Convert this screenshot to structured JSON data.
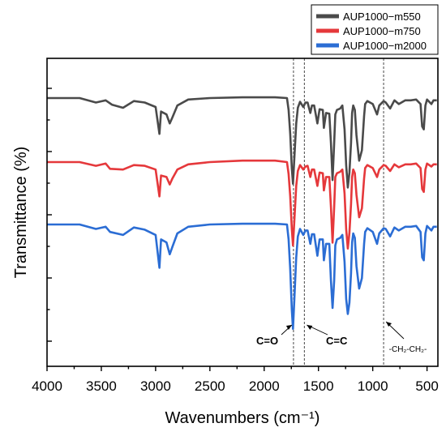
{
  "chart_data": {
    "type": "line",
    "xlabel": "Wavenumbers (cm⁻¹)",
    "ylabel": "Transmittance (%)",
    "xlim": [
      4000,
      400
    ],
    "x_reversed": true,
    "x_ticks": [
      4000,
      3500,
      3000,
      2500,
      2000,
      1500,
      1000,
      500
    ],
    "y_ticks_labeled": false,
    "legend_position": "top-right",
    "series": [
      {
        "name": "AUP1000−m550",
        "color": "#4a4a4a",
        "points": [
          [
            4000,
            0
          ],
          [
            3700,
            0
          ],
          [
            3550,
            -0.6
          ],
          [
            3460,
            -0.3
          ],
          [
            3400,
            -0.9
          ],
          [
            3300,
            -1.3
          ],
          [
            3200,
            -0.4
          ],
          [
            3100,
            -0.6
          ],
          [
            3000,
            -1.2
          ],
          [
            2965,
            -4.8
          ],
          [
            2950,
            -1.8
          ],
          [
            2900,
            -2.2
          ],
          [
            2870,
            -3.4
          ],
          [
            2845,
            -2.6
          ],
          [
            2800,
            -1.0
          ],
          [
            2700,
            -0.2
          ],
          [
            2500,
            0
          ],
          [
            2200,
            0.1
          ],
          [
            1900,
            0.1
          ],
          [
            1790,
            0
          ],
          [
            1775,
            -1.6
          ],
          [
            1760,
            -4.8
          ],
          [
            1745,
            -9.5
          ],
          [
            1735,
            -11.5
          ],
          [
            1722,
            -8.0
          ],
          [
            1705,
            -3.4
          ],
          [
            1690,
            -1.3
          ],
          [
            1670,
            -0.5
          ],
          [
            1640,
            -1.2
          ],
          [
            1620,
            -0.6
          ],
          [
            1600,
            -0.6
          ],
          [
            1575,
            -2.0
          ],
          [
            1560,
            -1.0
          ],
          [
            1540,
            -1.0
          ],
          [
            1510,
            -3.4
          ],
          [
            1490,
            -1.5
          ],
          [
            1460,
            -1.6
          ],
          [
            1450,
            -4.0
          ],
          [
            1430,
            -2.0
          ],
          [
            1400,
            -2.1
          ],
          [
            1385,
            -6.0
          ],
          [
            1370,
            -11.0
          ],
          [
            1355,
            -6.0
          ],
          [
            1345,
            -2.2
          ],
          [
            1330,
            -1.6
          ],
          [
            1300,
            -1.4
          ],
          [
            1280,
            -1.0
          ],
          [
            1260,
            -4.2
          ],
          [
            1245,
            -9.0
          ],
          [
            1230,
            -12.0
          ],
          [
            1215,
            -10.0
          ],
          [
            1200,
            -6.0
          ],
          [
            1190,
            -2.0
          ],
          [
            1180,
            -1.0
          ],
          [
            1165,
            -1.6
          ],
          [
            1150,
            -5.0
          ],
          [
            1125,
            -8.4
          ],
          [
            1100,
            -7.0
          ],
          [
            1080,
            -2.4
          ],
          [
            1070,
            -0.8
          ],
          [
            1050,
            -0.4
          ],
          [
            1000,
            -0.8
          ],
          [
            960,
            -2.2
          ],
          [
            940,
            -1.0
          ],
          [
            900,
            -0.4
          ],
          [
            880,
            -0.6
          ],
          [
            840,
            -1.4
          ],
          [
            800,
            -0.3
          ],
          [
            760,
            -0.8
          ],
          [
            700,
            -0.3
          ],
          [
            650,
            -0.3
          ],
          [
            600,
            -0.2
          ],
          [
            560,
            -0.8
          ],
          [
            545,
            -3.8
          ],
          [
            530,
            -4.2
          ],
          [
            515,
            -1.0
          ],
          [
            500,
            -0.2
          ],
          [
            460,
            -0.8
          ],
          [
            440,
            -0.3
          ],
          [
            410,
            -0.3
          ]
        ]
      },
      {
        "name": "AUP1000−m750",
        "color": "#e5383b",
        "points": [
          [
            4000,
            0
          ],
          [
            3700,
            0
          ],
          [
            3550,
            -0.5
          ],
          [
            3460,
            -0.2
          ],
          [
            3420,
            -0.9
          ],
          [
            3300,
            -1.0
          ],
          [
            3200,
            -0.4
          ],
          [
            3100,
            -0.5
          ],
          [
            3000,
            -1.0
          ],
          [
            2965,
            -4.6
          ],
          [
            2950,
            -1.8
          ],
          [
            2900,
            -2.0
          ],
          [
            2870,
            -3.0
          ],
          [
            2845,
            -2.2
          ],
          [
            2800,
            -1.0
          ],
          [
            2700,
            -0.3
          ],
          [
            2500,
            0
          ],
          [
            2200,
            0.2
          ],
          [
            1900,
            0.2
          ],
          [
            1790,
            0
          ],
          [
            1775,
            -1.6
          ],
          [
            1760,
            -4.6
          ],
          [
            1745,
            -9.0
          ],
          [
            1735,
            -11.2
          ],
          [
            1722,
            -7.8
          ],
          [
            1705,
            -3.2
          ],
          [
            1690,
            -1.2
          ],
          [
            1670,
            -0.4
          ],
          [
            1640,
            -1.0
          ],
          [
            1620,
            -0.6
          ],
          [
            1600,
            -0.5
          ],
          [
            1575,
            -2.0
          ],
          [
            1560,
            -1.0
          ],
          [
            1540,
            -1.0
          ],
          [
            1510,
            -3.2
          ],
          [
            1490,
            -1.4
          ],
          [
            1460,
            -1.5
          ],
          [
            1450,
            -3.8
          ],
          [
            1430,
            -2.0
          ],
          [
            1400,
            -2.0
          ],
          [
            1385,
            -6.0
          ],
          [
            1370,
            -10.8
          ],
          [
            1355,
            -6.0
          ],
          [
            1345,
            -2.0
          ],
          [
            1330,
            -1.5
          ],
          [
            1300,
            -1.3
          ],
          [
            1280,
            -1.0
          ],
          [
            1260,
            -4.2
          ],
          [
            1245,
            -9.0
          ],
          [
            1230,
            -11.6
          ],
          [
            1215,
            -9.5
          ],
          [
            1200,
            -5.6
          ],
          [
            1190,
            -2.0
          ],
          [
            1180,
            -1.0
          ],
          [
            1165,
            -1.5
          ],
          [
            1150,
            -4.4
          ],
          [
            1125,
            -7.4
          ],
          [
            1100,
            -6.2
          ],
          [
            1080,
            -2.2
          ],
          [
            1070,
            -0.8
          ],
          [
            1050,
            -0.4
          ],
          [
            1000,
            -0.8
          ],
          [
            960,
            -2.0
          ],
          [
            940,
            -1.0
          ],
          [
            900,
            -0.4
          ],
          [
            880,
            -0.5
          ],
          [
            840,
            -1.2
          ],
          [
            800,
            -0.3
          ],
          [
            760,
            -0.7
          ],
          [
            700,
            -0.3
          ],
          [
            650,
            -0.3
          ],
          [
            600,
            -0.2
          ],
          [
            560,
            -0.8
          ],
          [
            545,
            -3.6
          ],
          [
            530,
            -4.0
          ],
          [
            515,
            -1.0
          ],
          [
            500,
            -0.2
          ],
          [
            460,
            -0.6
          ],
          [
            440,
            -0.3
          ],
          [
            410,
            -0.3
          ]
        ]
      },
      {
        "name": "AUP1000−m2000",
        "color": "#2b6dd4",
        "points": [
          [
            4000,
            0
          ],
          [
            3700,
            0
          ],
          [
            3550,
            -0.6
          ],
          [
            3460,
            -0.3
          ],
          [
            3420,
            -1.0
          ],
          [
            3300,
            -1.4
          ],
          [
            3200,
            -0.4
          ],
          [
            3100,
            -0.7
          ],
          [
            3000,
            -1.4
          ],
          [
            2965,
            -5.8
          ],
          [
            2950,
            -2.0
          ],
          [
            2900,
            -2.4
          ],
          [
            2870,
            -4.0
          ],
          [
            2845,
            -3.0
          ],
          [
            2800,
            -1.2
          ],
          [
            2700,
            -0.3
          ],
          [
            2500,
            0
          ],
          [
            2200,
            0.1
          ],
          [
            1900,
            0.1
          ],
          [
            1790,
            0
          ],
          [
            1775,
            -2.0
          ],
          [
            1760,
            -6.0
          ],
          [
            1745,
            -11.5
          ],
          [
            1735,
            -14.0
          ],
          [
            1722,
            -10.0
          ],
          [
            1705,
            -4.4
          ],
          [
            1690,
            -1.6
          ],
          [
            1670,
            -0.6
          ],
          [
            1640,
            -1.4
          ],
          [
            1620,
            -0.8
          ],
          [
            1600,
            -0.8
          ],
          [
            1575,
            -2.6
          ],
          [
            1560,
            -1.3
          ],
          [
            1540,
            -1.3
          ],
          [
            1510,
            -4.2
          ],
          [
            1490,
            -2.0
          ],
          [
            1460,
            -2.0
          ],
          [
            1450,
            -4.8
          ],
          [
            1430,
            -2.6
          ],
          [
            1400,
            -2.6
          ],
          [
            1385,
            -7.5
          ],
          [
            1370,
            -11.2
          ],
          [
            1355,
            -7.5
          ],
          [
            1345,
            -2.8
          ],
          [
            1330,
            -2.0
          ],
          [
            1300,
            -1.8
          ],
          [
            1280,
            -1.4
          ],
          [
            1260,
            -5.0
          ],
          [
            1245,
            -10.0
          ],
          [
            1230,
            -12.0
          ],
          [
            1215,
            -10.5
          ],
          [
            1200,
            -6.5
          ],
          [
            1190,
            -2.4
          ],
          [
            1180,
            -1.2
          ],
          [
            1165,
            -1.8
          ],
          [
            1150,
            -5.6
          ],
          [
            1125,
            -8.6
          ],
          [
            1100,
            -7.2
          ],
          [
            1080,
            -2.6
          ],
          [
            1070,
            -1.0
          ],
          [
            1050,
            -0.5
          ],
          [
            1000,
            -1.0
          ],
          [
            960,
            -2.6
          ],
          [
            940,
            -1.2
          ],
          [
            900,
            -0.5
          ],
          [
            880,
            -0.6
          ],
          [
            840,
            -1.6
          ],
          [
            800,
            -0.4
          ],
          [
            760,
            -0.8
          ],
          [
            700,
            -0.3
          ],
          [
            650,
            -0.3
          ],
          [
            600,
            -0.2
          ],
          [
            560,
            -1.0
          ],
          [
            545,
            -4.4
          ],
          [
            530,
            -4.8
          ],
          [
            515,
            -1.2
          ],
          [
            500,
            -0.2
          ],
          [
            460,
            -0.8
          ],
          [
            440,
            -0.3
          ],
          [
            410,
            -0.3
          ]
        ]
      }
    ],
    "guide_lines": [
      1730,
      1630,
      900
    ],
    "annotations": [
      {
        "text": "C=O",
        "target": 1730
      },
      {
        "text": "C=C",
        "target": 1630
      },
      {
        "text": "-CH₂-CH₂-",
        "target": 900
      }
    ]
  }
}
